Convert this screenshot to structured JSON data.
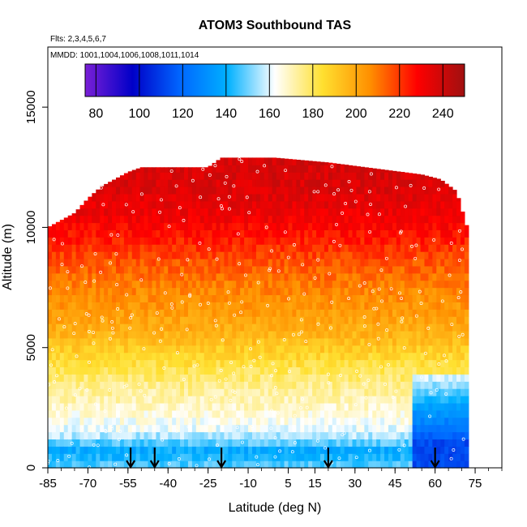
{
  "chart_data": {
    "type": "heatmap",
    "title": "ATOM3 Southbound TAS",
    "annotations": [
      "Flts: 2,3,4,5,6,7",
      "MMDD: 1001,1004,1006,1008,1011,1014"
    ],
    "xlabel": "Latitude (deg N)",
    "ylabel": "Altitude (m)",
    "xlim": [
      -85,
      85
    ],
    "ylim": [
      0,
      17500
    ],
    "x_ticks": [
      -85,
      -70,
      -55,
      -40,
      -25,
      -10,
      5,
      15,
      30,
      45,
      60,
      75
    ],
    "y_ticks": [
      0,
      5000,
      10000,
      15000
    ],
    "colorbar": {
      "range": [
        75,
        250
      ],
      "ticks": [
        80,
        100,
        120,
        140,
        160,
        180,
        200,
        220,
        240
      ],
      "colors": [
        "#7a1fd6",
        "#0000c8",
        "#0066ff",
        "#00b0ff",
        "#ffffff",
        "#ffe030",
        "#ff9000",
        "#ff0000",
        "#a01010"
      ]
    },
    "data_extent": {
      "lat_range": [
        -85,
        72
      ],
      "top_altitude_by_lat": [
        [
          -85,
          10000
        ],
        [
          -80,
          10300
        ],
        [
          -75,
          10600
        ],
        [
          -70,
          11200
        ],
        [
          -65,
          11700
        ],
        [
          -60,
          12000
        ],
        [
          -55,
          12300
        ],
        [
          -50,
          12500
        ],
        [
          -40,
          12500
        ],
        [
          -25,
          12500
        ],
        [
          -20,
          12900
        ],
        [
          0,
          12900
        ],
        [
          20,
          12700
        ],
        [
          55,
          12200
        ],
        [
          62,
          12000
        ],
        [
          68,
          11500
        ],
        [
          72,
          10000
        ]
      ]
    },
    "tas_profile_by_altitude": [
      [
        0,
        150
      ],
      [
        700,
        138
      ],
      [
        1500,
        160
      ],
      [
        2500,
        168
      ],
      [
        3500,
        175
      ],
      [
        4500,
        185
      ],
      [
        5500,
        196
      ],
      [
        6500,
        203
      ],
      [
        7500,
        208
      ],
      [
        8500,
        215
      ],
      [
        9500,
        224
      ],
      [
        10500,
        232
      ],
      [
        11500,
        236
      ],
      [
        12500,
        238
      ],
      [
        12900,
        238
      ]
    ],
    "northern_low_level_tas": [
      [
        1000,
        112
      ],
      [
        2000,
        128
      ],
      [
        3000,
        145
      ],
      [
        4000,
        162
      ]
    ],
    "flight_arrows_lat": [
      -54,
      -45,
      -20,
      20,
      60
    ],
    "grid": false
  }
}
